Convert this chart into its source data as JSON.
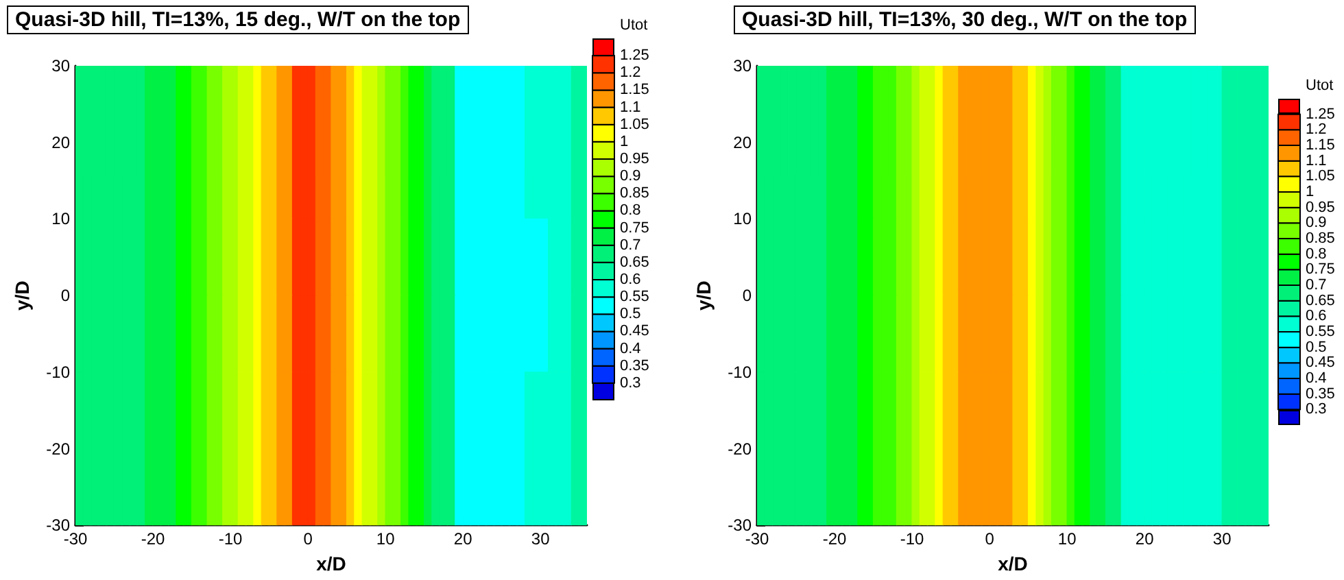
{
  "chart_data": [
    {
      "type": "heatmap",
      "title": "Quasi-3D hill, TI=13%, 15 deg., W/T on the top",
      "xlabel": "x/D",
      "ylabel": "y/D",
      "clabel": "Utot",
      "xlim": [
        -30,
        36
      ],
      "ylim": [
        -30,
        30
      ],
      "xticks": [
        -30,
        -20,
        -10,
        0,
        10,
        20,
        30
      ],
      "yticks": [
        -30,
        -20,
        -10,
        0,
        10,
        20,
        30
      ],
      "clim": [
        0.3,
        1.25
      ],
      "cticks": [
        0.3,
        0.35,
        0.4,
        0.45,
        0.5,
        0.55,
        0.6,
        0.65,
        0.7,
        0.75,
        0.8,
        0.85,
        0.9,
        0.95,
        1,
        1.05,
        1.1,
        1.15,
        1.2,
        1.25
      ],
      "cells": [
        [
          0.675,
          0.675,
          0.675,
          0.675,
          0.675,
          0.675,
          0.675,
          0.675,
          0.675,
          0.725,
          0.725,
          0.725,
          0.725,
          0.775,
          0.775,
          0.825,
          0.825,
          0.875,
          0.875,
          0.925,
          0.925,
          0.975,
          0.975,
          1.025,
          1.075,
          1.075,
          1.125,
          1.125,
          1.225,
          1.225,
          1.225,
          1.175,
          1.175,
          1.125,
          1.125,
          1.075,
          1.025,
          0.975,
          0.975,
          0.925,
          0.875,
          0.875,
          0.825,
          0.775,
          0.775,
          0.725,
          0.675,
          0.675,
          0.675,
          0.525,
          0.525,
          0.525,
          0.525,
          0.525,
          0.525,
          0.525,
          0.525,
          0.525,
          0.575,
          0.575,
          0.575,
          0.575,
          0.575,
          0.575,
          0.625,
          0.625
        ],
        [
          0.675,
          0.675,
          0.675,
          0.675,
          0.675,
          0.675,
          0.675,
          0.675,
          0.675,
          0.725,
          0.725,
          0.725,
          0.725,
          0.775,
          0.775,
          0.825,
          0.825,
          0.875,
          0.875,
          0.925,
          0.925,
          0.975,
          0.975,
          1.025,
          1.075,
          1.075,
          1.125,
          1.125,
          1.225,
          1.225,
          1.225,
          1.175,
          1.175,
          1.125,
          1.125,
          1.075,
          1.025,
          0.975,
          0.975,
          0.925,
          0.875,
          0.875,
          0.825,
          0.775,
          0.775,
          0.725,
          0.675,
          0.675,
          0.675,
          0.525,
          0.525,
          0.525,
          0.525,
          0.525,
          0.525,
          0.525,
          0.525,
          0.525,
          0.575,
          0.575,
          0.575,
          0.575,
          0.575,
          0.575,
          0.625,
          0.625
        ],
        [
          0.675,
          0.675,
          0.675,
          0.675,
          0.675,
          0.675,
          0.675,
          0.675,
          0.675,
          0.725,
          0.725,
          0.725,
          0.725,
          0.775,
          0.775,
          0.825,
          0.825,
          0.875,
          0.875,
          0.925,
          0.925,
          0.975,
          0.975,
          1.025,
          1.075,
          1.075,
          1.125,
          1.125,
          1.225,
          1.225,
          1.225,
          1.175,
          1.175,
          1.125,
          1.125,
          1.075,
          1.025,
          0.975,
          0.975,
          0.925,
          0.875,
          0.875,
          0.825,
          0.775,
          0.775,
          0.725,
          0.675,
          0.675,
          0.675,
          0.525,
          0.525,
          0.525,
          0.525,
          0.525,
          0.525,
          0.525,
          0.525,
          0.525,
          0.525,
          0.525,
          0.525,
          0.575,
          0.575,
          0.575,
          0.625,
          0.625
        ],
        [
          0.675,
          0.675,
          0.675,
          0.675,
          0.675,
          0.675,
          0.675,
          0.675,
          0.675,
          0.725,
          0.725,
          0.725,
          0.725,
          0.775,
          0.775,
          0.825,
          0.825,
          0.875,
          0.875,
          0.925,
          0.925,
          0.975,
          0.975,
          1.025,
          1.075,
          1.075,
          1.125,
          1.125,
          1.225,
          1.225,
          1.225,
          1.175,
          1.175,
          1.125,
          1.125,
          1.075,
          1.025,
          0.975,
          0.975,
          0.925,
          0.875,
          0.875,
          0.825,
          0.775,
          0.775,
          0.725,
          0.675,
          0.675,
          0.675,
          0.525,
          0.525,
          0.525,
          0.525,
          0.525,
          0.525,
          0.525,
          0.525,
          0.525,
          0.525,
          0.525,
          0.525,
          0.575,
          0.575,
          0.575,
          0.625,
          0.625
        ],
        [
          0.675,
          0.675,
          0.675,
          0.675,
          0.675,
          0.675,
          0.675,
          0.675,
          0.675,
          0.725,
          0.725,
          0.725,
          0.725,
          0.775,
          0.775,
          0.825,
          0.825,
          0.875,
          0.875,
          0.925,
          0.925,
          0.975,
          0.975,
          1.025,
          1.075,
          1.075,
          1.125,
          1.125,
          1.225,
          1.225,
          1.225,
          1.175,
          1.175,
          1.125,
          1.125,
          1.075,
          1.025,
          0.975,
          0.975,
          0.925,
          0.875,
          0.875,
          0.825,
          0.775,
          0.775,
          0.725,
          0.675,
          0.675,
          0.675,
          0.525,
          0.525,
          0.525,
          0.525,
          0.525,
          0.525,
          0.525,
          0.525,
          0.525,
          0.575,
          0.575,
          0.575,
          0.575,
          0.575,
          0.575,
          0.625,
          0.625
        ],
        [
          0.675,
          0.675,
          0.675,
          0.675,
          0.675,
          0.675,
          0.675,
          0.675,
          0.675,
          0.725,
          0.725,
          0.725,
          0.725,
          0.775,
          0.775,
          0.825,
          0.825,
          0.875,
          0.875,
          0.925,
          0.925,
          0.975,
          0.975,
          1.025,
          1.075,
          1.075,
          1.125,
          1.125,
          1.225,
          1.225,
          1.225,
          1.175,
          1.175,
          1.125,
          1.125,
          1.075,
          1.025,
          0.975,
          0.975,
          0.925,
          0.875,
          0.875,
          0.825,
          0.775,
          0.775,
          0.725,
          0.675,
          0.675,
          0.675,
          0.525,
          0.525,
          0.525,
          0.525,
          0.525,
          0.525,
          0.525,
          0.525,
          0.525,
          0.575,
          0.575,
          0.575,
          0.575,
          0.575,
          0.575,
          0.625,
          0.625
        ]
      ]
    },
    {
      "type": "heatmap",
      "title": "Quasi-3D hill, TI=13%, 30 deg., W/T on the top",
      "xlabel": "x/D",
      "ylabel": "y/D",
      "clabel": "Utot",
      "xlim": [
        -30,
        36
      ],
      "ylim": [
        -30,
        30
      ],
      "xticks": [
        -30,
        -20,
        -10,
        0,
        10,
        20,
        30
      ],
      "yticks": [
        -30,
        -20,
        -10,
        0,
        10,
        20,
        30
      ],
      "clim": [
        0.3,
        1.25
      ],
      "cticks": [
        0.3,
        0.35,
        0.4,
        0.45,
        0.5,
        0.55,
        0.6,
        0.65,
        0.7,
        0.75,
        0.8,
        0.85,
        0.9,
        0.95,
        1,
        1.05,
        1.1,
        1.15,
        1.2,
        1.25
      ],
      "cells": [
        [
          0.675,
          0.675,
          0.675,
          0.675,
          0.675,
          0.675,
          0.675,
          0.675,
          0.675,
          0.725,
          0.725,
          0.725,
          0.725,
          0.775,
          0.775,
          0.825,
          0.825,
          0.825,
          0.875,
          0.875,
          0.925,
          0.975,
          0.975,
          1.025,
          1.075,
          1.075,
          1.125,
          1.125,
          1.125,
          1.125,
          1.125,
          1.125,
          1.125,
          1.075,
          1.075,
          1.025,
          0.975,
          0.925,
          0.875,
          0.875,
          0.825,
          0.775,
          0.775,
          0.725,
          0.725,
          0.675,
          0.675,
          0.575,
          0.575,
          0.575,
          0.575,
          0.575,
          0.575,
          0.575,
          0.575,
          0.575,
          0.575,
          0.575,
          0.575,
          0.575,
          0.625,
          0.625,
          0.625,
          0.625,
          0.625,
          0.625
        ],
        [
          0.675,
          0.675,
          0.675,
          0.675,
          0.675,
          0.675,
          0.675,
          0.675,
          0.675,
          0.725,
          0.725,
          0.725,
          0.725,
          0.775,
          0.775,
          0.825,
          0.825,
          0.825,
          0.875,
          0.875,
          0.925,
          0.975,
          0.975,
          1.025,
          1.075,
          1.075,
          1.125,
          1.125,
          1.125,
          1.125,
          1.125,
          1.125,
          1.125,
          1.075,
          1.075,
          1.025,
          0.975,
          0.925,
          0.875,
          0.875,
          0.825,
          0.775,
          0.775,
          0.725,
          0.725,
          0.675,
          0.675,
          0.575,
          0.575,
          0.575,
          0.575,
          0.575,
          0.575,
          0.575,
          0.575,
          0.575,
          0.575,
          0.575,
          0.575,
          0.575,
          0.625,
          0.625,
          0.625,
          0.625,
          0.625,
          0.625
        ],
        [
          0.675,
          0.675,
          0.675,
          0.675,
          0.675,
          0.675,
          0.675,
          0.675,
          0.675,
          0.725,
          0.725,
          0.725,
          0.725,
          0.775,
          0.775,
          0.825,
          0.825,
          0.825,
          0.875,
          0.875,
          0.925,
          0.975,
          0.975,
          1.025,
          1.075,
          1.075,
          1.125,
          1.125,
          1.125,
          1.125,
          1.125,
          1.125,
          1.125,
          1.075,
          1.075,
          1.025,
          0.975,
          0.925,
          0.875,
          0.875,
          0.825,
          0.775,
          0.775,
          0.725,
          0.725,
          0.675,
          0.675,
          0.575,
          0.575,
          0.575,
          0.575,
          0.575,
          0.575,
          0.575,
          0.575,
          0.575,
          0.575,
          0.575,
          0.575,
          0.575,
          0.625,
          0.625,
          0.625,
          0.625,
          0.625,
          0.625
        ],
        [
          0.675,
          0.675,
          0.675,
          0.675,
          0.675,
          0.675,
          0.675,
          0.675,
          0.675,
          0.725,
          0.725,
          0.725,
          0.725,
          0.775,
          0.775,
          0.825,
          0.825,
          0.825,
          0.875,
          0.875,
          0.925,
          0.975,
          0.975,
          1.025,
          1.075,
          1.075,
          1.125,
          1.125,
          1.125,
          1.125,
          1.125,
          1.125,
          1.125,
          1.075,
          1.075,
          1.025,
          0.975,
          0.925,
          0.875,
          0.875,
          0.825,
          0.775,
          0.775,
          0.725,
          0.725,
          0.675,
          0.675,
          0.575,
          0.575,
          0.575,
          0.575,
          0.575,
          0.575,
          0.575,
          0.575,
          0.575,
          0.575,
          0.575,
          0.575,
          0.575,
          0.625,
          0.625,
          0.625,
          0.625,
          0.625,
          0.625
        ],
        [
          0.675,
          0.675,
          0.675,
          0.675,
          0.675,
          0.675,
          0.675,
          0.675,
          0.675,
          0.725,
          0.725,
          0.725,
          0.725,
          0.775,
          0.775,
          0.825,
          0.825,
          0.825,
          0.875,
          0.875,
          0.925,
          0.975,
          0.975,
          1.025,
          1.075,
          1.075,
          1.125,
          1.125,
          1.125,
          1.125,
          1.125,
          1.125,
          1.125,
          1.075,
          1.075,
          1.025,
          0.975,
          0.925,
          0.875,
          0.875,
          0.825,
          0.775,
          0.775,
          0.725,
          0.725,
          0.675,
          0.675,
          0.575,
          0.575,
          0.575,
          0.575,
          0.575,
          0.575,
          0.575,
          0.575,
          0.575,
          0.575,
          0.575,
          0.575,
          0.575,
          0.625,
          0.625,
          0.625,
          0.625,
          0.625,
          0.625
        ],
        [
          0.675,
          0.675,
          0.675,
          0.675,
          0.675,
          0.675,
          0.675,
          0.675,
          0.675,
          0.725,
          0.725,
          0.725,
          0.725,
          0.775,
          0.775,
          0.825,
          0.825,
          0.825,
          0.875,
          0.875,
          0.925,
          0.975,
          0.975,
          1.025,
          1.075,
          1.075,
          1.125,
          1.125,
          1.125,
          1.125,
          1.125,
          1.125,
          1.125,
          1.075,
          1.075,
          1.025,
          0.975,
          0.925,
          0.875,
          0.875,
          0.825,
          0.775,
          0.775,
          0.725,
          0.725,
          0.675,
          0.675,
          0.575,
          0.575,
          0.575,
          0.575,
          0.575,
          0.575,
          0.575,
          0.575,
          0.575,
          0.575,
          0.575,
          0.575,
          0.575,
          0.625,
          0.625,
          0.625,
          0.625,
          0.625,
          0.625
        ]
      ]
    }
  ]
}
